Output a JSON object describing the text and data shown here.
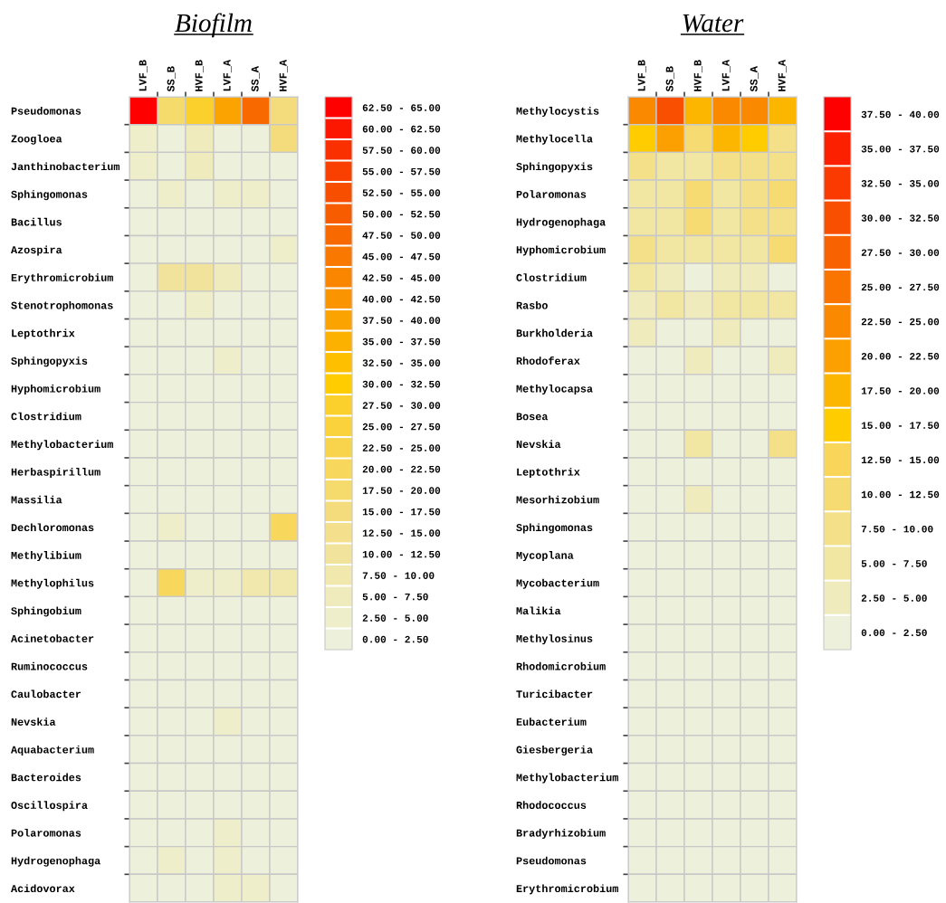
{
  "chart_data": [
    {
      "type": "heatmap",
      "title": "Biofilm",
      "categories": [
        "LVF_B",
        "SS_B",
        "HVF_B",
        "LVF_A",
        "SS_A",
        "HVF_A"
      ],
      "y_categories": [
        "Pseudomonas",
        "Zoogloea",
        "Janthinobacterium",
        "Sphingomonas",
        "Bacillus",
        "Azospira",
        "Erythromicrobium",
        "Stenotrophomonas",
        "Leptothrix",
        "Sphingopyxis",
        "Hyphomicrobium",
        "Clostridium",
        "Methylobacterium",
        "Herbaspirillum",
        "Massilia",
        "Dechloromonas",
        "Methylibium",
        "Methylophilus",
        "Sphingobium",
        "Acinetobacter",
        "Ruminococcus",
        "Caulobacter",
        "Nevskia",
        "Aquabacterium",
        "Bacteroides",
        "Oscillospira",
        "Polaromonas",
        "Hydrogenophaga",
        "Acidovorax"
      ],
      "cells": [
        [
          63.75,
          18.75,
          28.75,
          38.75,
          48.75,
          16.25
        ],
        [
          3.75,
          1.25,
          6.25,
          1.25,
          1.25,
          16.25
        ],
        [
          3.75,
          1.25,
          6.25,
          1.25,
          1.25,
          1.25
        ],
        [
          1.25,
          3.75,
          1.25,
          3.75,
          3.75,
          1.25
        ],
        [
          1.25,
          1.25,
          1.25,
          1.25,
          1.25,
          1.25
        ],
        [
          1.25,
          1.25,
          1.25,
          1.25,
          1.25,
          3.75
        ],
        [
          1.25,
          11.25,
          11.25,
          6.25,
          1.25,
          1.25
        ],
        [
          1.25,
          1.25,
          3.75,
          1.25,
          1.25,
          1.25
        ],
        [
          1.25,
          1.25,
          1.25,
          1.25,
          1.25,
          1.25
        ],
        [
          1.25,
          1.25,
          1.25,
          3.75,
          1.25,
          1.25
        ],
        [
          1.25,
          1.25,
          1.25,
          1.25,
          1.25,
          1.25
        ],
        [
          1.25,
          1.25,
          1.25,
          1.25,
          1.25,
          1.25
        ],
        [
          1.25,
          1.25,
          1.25,
          1.25,
          1.25,
          1.25
        ],
        [
          1.25,
          1.25,
          1.25,
          1.25,
          1.25,
          1.25
        ],
        [
          1.25,
          1.25,
          1.25,
          1.25,
          1.25,
          1.25
        ],
        [
          1.25,
          3.75,
          1.25,
          1.25,
          1.25,
          21.25
        ],
        [
          1.25,
          1.25,
          1.25,
          1.25,
          1.25,
          1.25
        ],
        [
          1.25,
          21.25,
          3.75,
          3.75,
          8.75,
          8.75
        ],
        [
          1.25,
          1.25,
          1.25,
          1.25,
          1.25,
          1.25
        ],
        [
          1.25,
          1.25,
          1.25,
          1.25,
          1.25,
          1.25
        ],
        [
          1.25,
          1.25,
          1.25,
          1.25,
          1.25,
          1.25
        ],
        [
          1.25,
          1.25,
          1.25,
          1.25,
          1.25,
          1.25
        ],
        [
          1.25,
          1.25,
          1.25,
          3.75,
          1.25,
          1.25
        ],
        [
          1.25,
          1.25,
          1.25,
          1.25,
          1.25,
          1.25
        ],
        [
          1.25,
          1.25,
          1.25,
          1.25,
          1.25,
          1.25
        ],
        [
          1.25,
          1.25,
          1.25,
          1.25,
          1.25,
          1.25
        ],
        [
          1.25,
          1.25,
          1.25,
          3.75,
          1.25,
          1.25
        ],
        [
          1.25,
          3.75,
          1.25,
          3.75,
          1.25,
          1.25
        ],
        [
          1.25,
          1.25,
          1.25,
          3.75,
          3.75,
          1.25
        ]
      ],
      "clim": [
        0,
        65
      ],
      "cticks": [
        {
          "value": 1.25,
          "label": "0.00 - 2.50"
        },
        {
          "value": 3.75,
          "label": "2.50 - 5.00"
        },
        {
          "value": 6.25,
          "label": "5.00 - 7.50"
        },
        {
          "value": 8.75,
          "label": "7.50 - 10.00"
        },
        {
          "value": 11.25,
          "label": "10.00 - 12.50"
        },
        {
          "value": 13.75,
          "label": "12.50 - 15.00"
        },
        {
          "value": 16.25,
          "label": "15.00 - 17.50"
        },
        {
          "value": 18.75,
          "label": "17.50 - 20.00"
        },
        {
          "value": 21.25,
          "label": "20.00 - 22.50"
        },
        {
          "value": 23.75,
          "label": "22.50 - 25.00"
        },
        {
          "value": 26.25,
          "label": "25.00 - 27.50"
        },
        {
          "value": 28.75,
          "label": "27.50 - 30.00"
        },
        {
          "value": 31.25,
          "label": "30.00 - 32.50"
        },
        {
          "value": 33.75,
          "label": "32.50 - 35.00"
        },
        {
          "value": 36.25,
          "label": "35.00 - 37.50"
        },
        {
          "value": 38.75,
          "label": "37.50 - 40.00"
        },
        {
          "value": 41.25,
          "label": "40.00 - 42.50"
        },
        {
          "value": 43.75,
          "label": "42.50 - 45.00"
        },
        {
          "value": 46.25,
          "label": "45.00 - 47.50"
        },
        {
          "value": 48.75,
          "label": "47.50 - 50.00"
        },
        {
          "value": 51.25,
          "label": "50.00 - 52.50"
        },
        {
          "value": 53.75,
          "label": "52.50 - 55.00"
        },
        {
          "value": 56.25,
          "label": "55.00 - 57.50"
        },
        {
          "value": 58.75,
          "label": "57.50 - 60.00"
        },
        {
          "value": 61.25,
          "label": "60.00 - 62.50"
        },
        {
          "value": 63.75,
          "label": "62.50 - 65.00"
        }
      ],
      "colors": [
        "#edf0db",
        "#eeeecb",
        "#efebbc",
        "#f0e8ac",
        "#f2e39c",
        "#f3df8c",
        "#f4dc7c",
        "#f5da6c",
        "#f7d75c",
        "#f8d44c",
        "#fad23c",
        "#fbd02c",
        "#ffcc00",
        "#fdbf00",
        "#fcb100",
        "#fba300",
        "#fa9400",
        "#fa8600",
        "#f97800",
        "#f86a00",
        "#f85c00",
        "#f84e00",
        "#f94000",
        "#fa3000",
        "#fc1800",
        "#ff0000"
      ]
    },
    {
      "type": "heatmap",
      "title": "Water",
      "categories": [
        "LVF_B",
        "SS_B",
        "HVF_B",
        "LVF_A",
        "SS_A",
        "HVF_A"
      ],
      "y_categories": [
        "Methylocystis",
        "Methylocella",
        "Sphingopyxis",
        "Polaromonas",
        "Hydrogenophaga",
        "Hyphomicrobium",
        "Clostridium",
        "Rasbo",
        "Burkholderia",
        "Rhodoferax",
        "Methylocapsa",
        "Bosea",
        "Nevskia",
        "Leptothrix",
        "Mesorhizobium",
        "Sphingomonas",
        "Mycoplana",
        "Mycobacterium",
        "Malikia",
        "Methylosinus",
        "Rhodomicrobium",
        "Turicibacter",
        "Eubacterium",
        "Giesbergeria",
        "Methylobacterium",
        "Rhodococcus",
        "Bradyrhizobium",
        "Pseudomonas",
        "Erythromicrobium"
      ],
      "cells": [
        [
          23.75,
          31.25,
          18.75,
          23.75,
          23.75,
          18.75
        ],
        [
          16.25,
          21.25,
          11.25,
          18.75,
          16.25,
          8.75
        ],
        [
          8.75,
          6.25,
          6.25,
          8.75,
          8.75,
          8.75
        ],
        [
          6.25,
          6.25,
          11.25,
          6.25,
          8.75,
          11.25
        ],
        [
          6.25,
          6.25,
          11.25,
          6.25,
          8.75,
          8.75
        ],
        [
          8.75,
          6.25,
          6.25,
          6.25,
          6.25,
          11.25
        ],
        [
          6.25,
          3.75,
          1.25,
          3.75,
          3.75,
          1.25
        ],
        [
          3.75,
          6.25,
          3.75,
          6.25,
          6.25,
          6.25
        ],
        [
          3.75,
          1.25,
          1.25,
          3.75,
          1.25,
          1.25
        ],
        [
          1.25,
          1.25,
          3.75,
          1.25,
          1.25,
          3.75
        ],
        [
          1.25,
          1.25,
          1.25,
          1.25,
          1.25,
          1.25
        ],
        [
          1.25,
          1.25,
          1.25,
          1.25,
          1.25,
          1.25
        ],
        [
          1.25,
          1.25,
          6.25,
          1.25,
          1.25,
          8.75
        ],
        [
          1.25,
          1.25,
          1.25,
          1.25,
          1.25,
          1.25
        ],
        [
          1.25,
          1.25,
          3.75,
          1.25,
          1.25,
          1.25
        ],
        [
          1.25,
          1.25,
          1.25,
          1.25,
          1.25,
          1.25
        ],
        [
          1.25,
          1.25,
          1.25,
          1.25,
          1.25,
          1.25
        ],
        [
          1.25,
          1.25,
          1.25,
          1.25,
          1.25,
          1.25
        ],
        [
          1.25,
          1.25,
          1.25,
          1.25,
          1.25,
          1.25
        ],
        [
          1.25,
          1.25,
          1.25,
          1.25,
          1.25,
          1.25
        ],
        [
          1.25,
          1.25,
          1.25,
          1.25,
          1.25,
          1.25
        ],
        [
          1.25,
          1.25,
          1.25,
          1.25,
          1.25,
          1.25
        ],
        [
          1.25,
          1.25,
          1.25,
          1.25,
          1.25,
          1.25
        ],
        [
          1.25,
          1.25,
          1.25,
          1.25,
          1.25,
          1.25
        ],
        [
          1.25,
          1.25,
          1.25,
          1.25,
          1.25,
          1.25
        ],
        [
          1.25,
          1.25,
          1.25,
          1.25,
          1.25,
          1.25
        ],
        [
          1.25,
          1.25,
          1.25,
          1.25,
          1.25,
          1.25
        ],
        [
          1.25,
          1.25,
          1.25,
          1.25,
          1.25,
          1.25
        ],
        [
          1.25,
          1.25,
          1.25,
          1.25,
          1.25,
          1.25
        ]
      ],
      "clim": [
        0,
        40
      ],
      "cticks": [
        {
          "value": 1.25,
          "label": "0.00 - 2.50"
        },
        {
          "value": 3.75,
          "label": "2.50 - 5.00"
        },
        {
          "value": 6.25,
          "label": "5.00 - 7.50"
        },
        {
          "value": 8.75,
          "label": "7.50 - 10.00"
        },
        {
          "value": 11.25,
          "label": "10.00 - 12.50"
        },
        {
          "value": 13.75,
          "label": "12.50 - 15.00"
        },
        {
          "value": 16.25,
          "label": "15.00 - 17.50"
        },
        {
          "value": 18.75,
          "label": "17.50 - 20.00"
        },
        {
          "value": 21.25,
          "label": "20.00 - 22.50"
        },
        {
          "value": 23.75,
          "label": "22.50 - 25.00"
        },
        {
          "value": 26.25,
          "label": "25.00 - 27.50"
        },
        {
          "value": 28.75,
          "label": "27.50 - 30.00"
        },
        {
          "value": 31.25,
          "label": "30.00 - 32.50"
        },
        {
          "value": 33.75,
          "label": "32.50 - 35.00"
        },
        {
          "value": 36.25,
          "label": "35.00 - 37.50"
        },
        {
          "value": 38.75,
          "label": "37.50 - 40.00"
        }
      ],
      "colors": [
        "#edf0db",
        "#efebbd",
        "#f1e6a2",
        "#f4e089",
        "#f6da72",
        "#f9d55a",
        "#ffcc00",
        "#fdb600",
        "#fc9f00",
        "#fb8900",
        "#fa7500",
        "#f96200",
        "#f94f00",
        "#fa3a00",
        "#fc2000",
        "#ff0000"
      ]
    }
  ]
}
